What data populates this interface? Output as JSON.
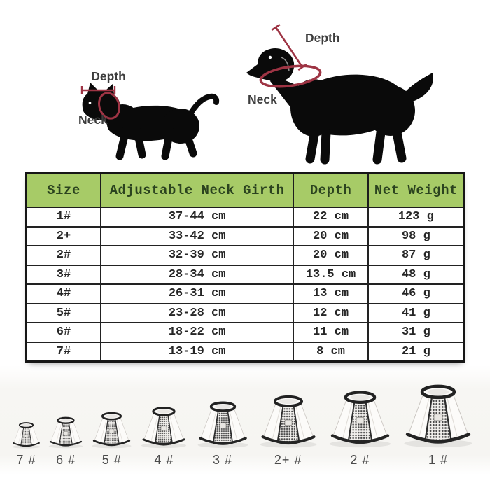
{
  "diagram": {
    "annotation_color": "#9e3444",
    "silhouette_color": "#0a0a0a",
    "cat": {
      "depth_label": "Depth",
      "neck_label": "Neck"
    },
    "dog": {
      "depth_label": "Depth",
      "neck_label": "Neck"
    }
  },
  "table": {
    "header_bg": "#a7cb67",
    "header_text_color": "#2b431f",
    "headers": [
      "Size",
      "Adjustable Neck Girth",
      "Depth",
      "Net Weight"
    ],
    "rows": [
      [
        "1#",
        "37-44 cm",
        "22 cm",
        "123 g"
      ],
      [
        "2+",
        "33-42 cm",
        "20 cm",
        "98 g"
      ],
      [
        "2#",
        "32-39 cm",
        "20 cm",
        "87 g"
      ],
      [
        "3#",
        "28-34 cm",
        "13.5 cm",
        "48 g"
      ],
      [
        "4#",
        "26-31 cm",
        "13 cm",
        "46 g"
      ],
      [
        "5#",
        "23-28 cm",
        "12 cm",
        "41 g"
      ],
      [
        "6#",
        "18-22 cm",
        "11 cm",
        "31 g"
      ],
      [
        "7#",
        "13-19 cm",
        "8 cm",
        "21 g"
      ]
    ]
  },
  "cones": {
    "items": [
      {
        "label": "7 #",
        "scale": 0.42
      },
      {
        "label": "6 #",
        "scale": 0.5
      },
      {
        "label": "5 #",
        "scale": 0.58
      },
      {
        "label": "4 #",
        "scale": 0.66
      },
      {
        "label": "3 #",
        "scale": 0.74
      },
      {
        "label": "2+ #",
        "scale": 0.84
      },
      {
        "label": "2 #",
        "scale": 0.9
      },
      {
        "label": "1 #",
        "scale": 1.0
      }
    ]
  }
}
